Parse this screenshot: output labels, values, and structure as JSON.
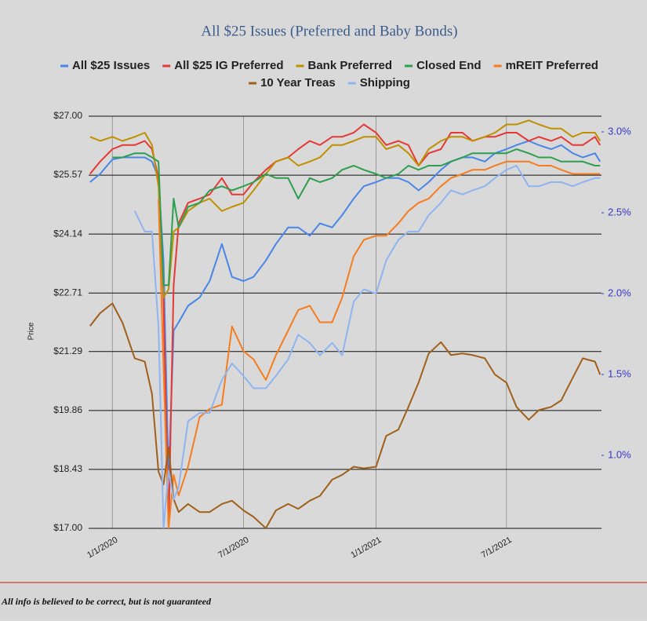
{
  "chart_data": {
    "type": "line",
    "title": "All $25 Issues (Preferred and Baby Bonds)",
    "y_label": "Price",
    "x": [
      "2019-12-01",
      "2019-12-15",
      "2020-01-01",
      "2020-01-15",
      "2020-02-01",
      "2020-02-15",
      "2020-02-25",
      "2020-03-05",
      "2020-03-12",
      "2020-03-19",
      "2020-03-26",
      "2020-04-02",
      "2020-04-15",
      "2020-05-01",
      "2020-05-15",
      "2020-06-01",
      "2020-06-15",
      "2020-07-01",
      "2020-07-15",
      "2020-08-01",
      "2020-08-15",
      "2020-09-01",
      "2020-09-15",
      "2020-10-01",
      "2020-10-15",
      "2020-11-01",
      "2020-11-15",
      "2020-12-01",
      "2020-12-15",
      "2021-01-01",
      "2021-01-15",
      "2021-02-01",
      "2021-02-15",
      "2021-03-01",
      "2021-03-15",
      "2021-04-01",
      "2021-04-15",
      "2021-05-01",
      "2021-05-15",
      "2021-06-01",
      "2021-06-15",
      "2021-07-01",
      "2021-07-15",
      "2021-08-01",
      "2021-08-15",
      "2021-09-01",
      "2021-09-15",
      "2021-10-01",
      "2021-10-15",
      "2021-11-01",
      "2021-11-08"
    ],
    "xlim": [
      "2019-11-29",
      "2021-11-10"
    ],
    "xticks": [
      {
        "value": "2020-01-01",
        "label": "1/1/2020"
      },
      {
        "value": "2020-07-01",
        "label": "7/1/2020"
      },
      {
        "value": "2021-01-01",
        "label": "1/1/2021"
      },
      {
        "value": "2021-07-01",
        "label": "7/1/2021"
      }
    ],
    "ylim": [
      17,
      27
    ],
    "yticks": [
      {
        "value": 17,
        "label": "$17.00"
      },
      {
        "value": 18.43,
        "label": "$18.43"
      },
      {
        "value": 19.86,
        "label": "$19.86"
      },
      {
        "value": 21.29,
        "label": "$21.29"
      },
      {
        "value": 22.71,
        "label": "$22.71"
      },
      {
        "value": 24.14,
        "label": "$24.14"
      },
      {
        "value": 25.57,
        "label": "$25.57"
      },
      {
        "value": 27,
        "label": "$27.00"
      }
    ],
    "y2lim": [
      0.549,
      3.097
    ],
    "y2ticks": [
      {
        "value": 1,
        "label": "1.0%"
      },
      {
        "value": 1.5,
        "label": "1.5%"
      },
      {
        "value": 2,
        "label": "2.0%"
      },
      {
        "value": 2.5,
        "label": "2.5%"
      },
      {
        "value": 3,
        "label": "3.0%"
      }
    ],
    "grid": true,
    "legend": "top",
    "series": [
      {
        "name": "All $25 Issues",
        "color": "#4a86e8",
        "values": [
          25.4,
          25.6,
          25.95,
          26.0,
          26.0,
          26.0,
          25.9,
          25.5,
          23.5,
          18.2,
          21.8,
          22.0,
          22.4,
          22.6,
          23.0,
          23.9,
          23.1,
          23.0,
          23.1,
          23.5,
          23.9,
          24.3,
          24.3,
          24.1,
          24.4,
          24.3,
          24.6,
          25.0,
          25.3,
          25.4,
          25.5,
          25.5,
          25.4,
          25.2,
          25.4,
          25.7,
          25.9,
          26.0,
          26.0,
          25.9,
          26.1,
          26.2,
          26.3,
          26.4,
          26.3,
          26.2,
          26.3,
          26.1,
          26.0,
          26.1,
          25.9
        ]
      },
      {
        "name": "All $25 IG Preferred",
        "color": "#e53935",
        "values": [
          25.6,
          25.9,
          26.2,
          26.3,
          26.3,
          26.4,
          26.2,
          25.5,
          22.5,
          17.0,
          22.9,
          24.4,
          24.9,
          25.0,
          25.1,
          25.5,
          25.1,
          25.1,
          25.4,
          25.7,
          25.9,
          26.0,
          26.2,
          26.4,
          26.3,
          26.5,
          26.5,
          26.6,
          26.8,
          26.6,
          26.3,
          26.4,
          26.3,
          25.8,
          26.1,
          26.2,
          26.6,
          26.6,
          26.4,
          26.5,
          26.5,
          26.6,
          26.6,
          26.4,
          26.5,
          26.4,
          26.5,
          26.3,
          26.3,
          26.5,
          26.3
        ]
      },
      {
        "name": "Bank Preferred",
        "color": "#bf9000",
        "values": [
          26.5,
          26.4,
          26.5,
          26.4,
          26.5,
          26.6,
          26.3,
          25.3,
          22.6,
          22.8,
          24.2,
          24.3,
          24.7,
          24.9,
          25.0,
          24.7,
          24.8,
          24.9,
          25.2,
          25.6,
          25.9,
          26.0,
          25.8,
          25.9,
          26.0,
          26.3,
          26.3,
          26.4,
          26.5,
          26.5,
          26.2,
          26.3,
          26.1,
          25.8,
          26.2,
          26.4,
          26.5,
          26.5,
          26.4,
          26.5,
          26.6,
          26.8,
          26.8,
          26.9,
          26.8,
          26.7,
          26.7,
          26.5,
          26.6,
          26.6,
          26.4
        ]
      },
      {
        "name": "Closed End",
        "color": "#2e9e4f",
        "values": [
          null,
          null,
          26.0,
          26.0,
          26.1,
          26.1,
          26.0,
          25.9,
          22.9,
          22.9,
          25.0,
          24.3,
          24.8,
          24.9,
          25.2,
          25.3,
          25.2,
          25.3,
          25.4,
          25.6,
          25.5,
          25.5,
          25.0,
          25.5,
          25.4,
          25.5,
          25.7,
          25.8,
          25.7,
          25.6,
          25.5,
          25.6,
          25.8,
          25.7,
          25.8,
          25.8,
          25.9,
          26.0,
          26.1,
          26.1,
          26.1,
          26.1,
          26.2,
          26.1,
          26.0,
          26.0,
          25.9,
          25.9,
          25.9,
          25.8,
          25.8
        ]
      },
      {
        "name": "mREIT Preferred",
        "color": "#f57c1f",
        "values": [
          null,
          null,
          null,
          null,
          null,
          null,
          null,
          25.0,
          20.9,
          17.0,
          18.3,
          17.8,
          18.5,
          19.7,
          19.9,
          20.0,
          21.9,
          21.3,
          21.1,
          20.6,
          21.2,
          21.8,
          22.3,
          22.4,
          22.0,
          22.0,
          22.6,
          23.6,
          24.0,
          24.1,
          24.1,
          24.4,
          24.7,
          24.9,
          25.0,
          25.3,
          25.5,
          25.6,
          25.7,
          25.7,
          25.8,
          25.9,
          25.9,
          25.9,
          25.8,
          25.8,
          25.7,
          25.6,
          25.6,
          25.6,
          25.6
        ]
      },
      {
        "name": "10 Year Treas",
        "color": "#a0601a",
        "axis": "y2",
        "values": [
          1.8,
          1.88,
          1.94,
          1.82,
          1.6,
          1.58,
          1.38,
          0.9,
          0.82,
          1.05,
          0.73,
          0.65,
          0.7,
          0.65,
          0.65,
          0.7,
          0.72,
          0.66,
          0.62,
          0.55,
          0.66,
          0.7,
          0.67,
          0.72,
          0.75,
          0.85,
          0.88,
          0.93,
          0.92,
          0.93,
          1.12,
          1.16,
          1.3,
          1.45,
          1.63,
          1.7,
          1.62,
          1.63,
          1.62,
          1.6,
          1.5,
          1.45,
          1.3,
          1.22,
          1.28,
          1.3,
          1.34,
          1.48,
          1.6,
          1.58,
          1.5
        ]
      },
      {
        "name": "Shipping",
        "color": "#8fb4f0",
        "values": [
          null,
          null,
          null,
          null,
          24.7,
          24.2,
          24.2,
          21.9,
          17.0,
          18.4,
          17.7,
          18.0,
          19.6,
          19.8,
          19.8,
          20.6,
          21.0,
          20.7,
          20.4,
          20.4,
          20.7,
          21.1,
          21.7,
          21.5,
          21.2,
          21.5,
          21.2,
          22.5,
          22.8,
          22.7,
          23.5,
          24.0,
          24.2,
          24.2,
          24.6,
          24.9,
          25.2,
          25.1,
          25.2,
          25.3,
          25.5,
          25.7,
          25.8,
          25.3,
          25.3,
          25.4,
          25.4,
          25.3,
          25.4,
          25.5,
          25.5
        ]
      }
    ]
  },
  "footer": "All info is believed to be correct, but is not guaranteed"
}
